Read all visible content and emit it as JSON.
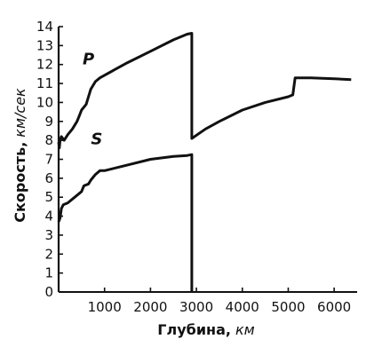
{
  "chart_data": {
    "type": "line",
    "title": "",
    "xlabel": "Глубина, км",
    "xlabel_main": "Глубина,",
    "xlabel_unit": "км",
    "ylabel": "Скорость, км/сек",
    "ylabel_main": "Скорость,",
    "ylabel_unit": "км/сек",
    "xlim": [
      0,
      6500
    ],
    "ylim": [
      0,
      14
    ],
    "x_ticks": [
      1000,
      2000,
      3000,
      4000,
      5000,
      6000
    ],
    "y_ticks": [
      0,
      1,
      2,
      3,
      4,
      5,
      6,
      7,
      8,
      9,
      10,
      11,
      12,
      13,
      14
    ],
    "grid": false,
    "legend": "none",
    "series": [
      {
        "name": "P",
        "color": "#111111",
        "points": [
          [
            0,
            7.9
          ],
          [
            15,
            7.6
          ],
          [
            30,
            8.0
          ],
          [
            60,
            8.2
          ],
          [
            120,
            8.0
          ],
          [
            200,
            8.3
          ],
          [
            300,
            8.6
          ],
          [
            400,
            9.0
          ],
          [
            450,
            9.3
          ],
          [
            500,
            9.6
          ],
          [
            600,
            9.9
          ],
          [
            650,
            10.3
          ],
          [
            700,
            10.7
          ],
          [
            800,
            11.1
          ],
          [
            900,
            11.3
          ],
          [
            1200,
            11.7
          ],
          [
            1500,
            12.1
          ],
          [
            2000,
            12.7
          ],
          [
            2500,
            13.3
          ],
          [
            2800,
            13.6
          ],
          [
            2900,
            13.65
          ],
          [
            2900,
            8.1
          ],
          [
            3200,
            8.6
          ],
          [
            3500,
            9.0
          ],
          [
            4000,
            9.6
          ],
          [
            4500,
            10.0
          ],
          [
            5000,
            10.3
          ],
          [
            5100,
            10.4
          ],
          [
            5150,
            11.3
          ],
          [
            5500,
            11.3
          ],
          [
            6000,
            11.25
          ],
          [
            6370,
            11.2
          ]
        ]
      },
      {
        "name": "S",
        "color": "#111111",
        "points": [
          [
            0,
            3.7
          ],
          [
            30,
            3.9
          ],
          [
            60,
            4.4
          ],
          [
            100,
            4.6
          ],
          [
            200,
            4.7
          ],
          [
            300,
            4.9
          ],
          [
            400,
            5.1
          ],
          [
            500,
            5.3
          ],
          [
            550,
            5.6
          ],
          [
            650,
            5.7
          ],
          [
            700,
            5.9
          ],
          [
            800,
            6.2
          ],
          [
            900,
            6.4
          ],
          [
            1000,
            6.4
          ],
          [
            1500,
            6.7
          ],
          [
            2000,
            7.0
          ],
          [
            2500,
            7.15
          ],
          [
            2800,
            7.2
          ],
          [
            2900,
            7.25
          ],
          [
            2900,
            0
          ]
        ]
      }
    ],
    "annotations": [
      {
        "text": "P",
        "x": 650,
        "y": 12.0
      },
      {
        "text": "S",
        "x": 830,
        "y": 7.8
      }
    ]
  }
}
